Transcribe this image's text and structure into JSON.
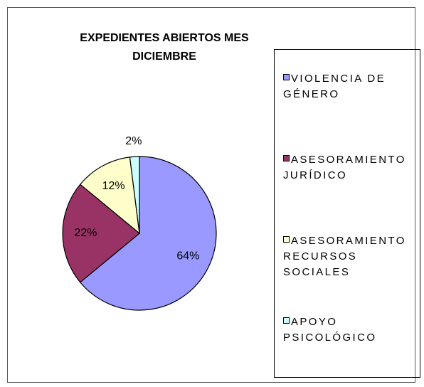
{
  "chart_data": {
    "type": "pie",
    "title": "EXPEDIENTES ABIERTOS MES DICIEMBRE",
    "categories": [
      "VIOLENCIA DE GÉNERO",
      "ASESORAMIENTO JURÍDICO",
      "ASESORAMIENTO RECURSOS SOCIALES",
      "APOYO PSICOLÓGICO"
    ],
    "values": [
      64,
      22,
      12,
      2
    ],
    "value_labels": [
      "64%",
      "22%",
      "12%",
      "2%"
    ],
    "colors": [
      "#9999ff",
      "#993366",
      "#ffffcc",
      "#ccffff"
    ],
    "legend": "right"
  }
}
